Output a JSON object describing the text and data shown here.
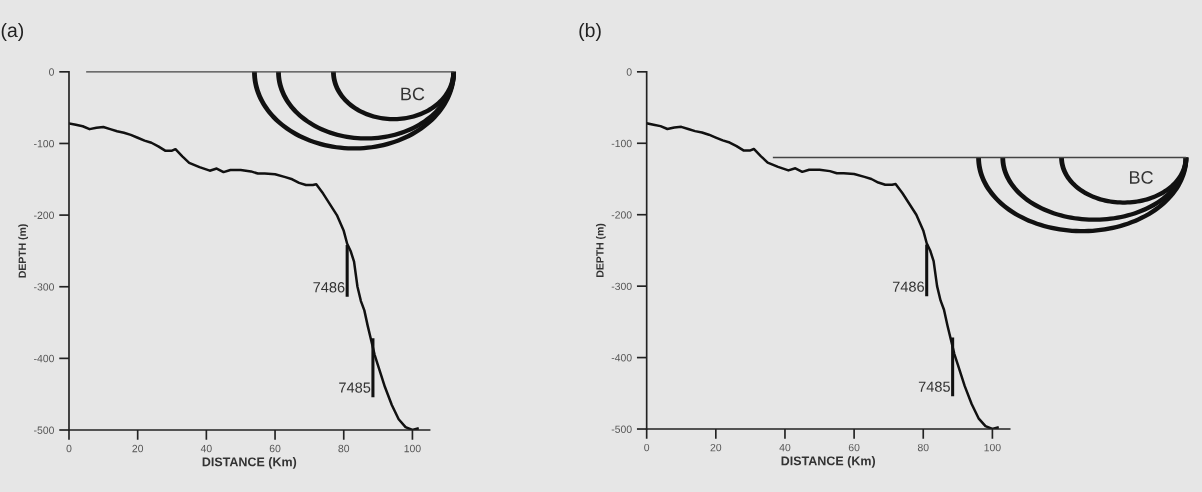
{
  "chart_data": [
    {
      "type": "line",
      "title": "(a)",
      "xlabel": "DISTANCE (Km)",
      "ylabel": "DEPTH (m)",
      "annotations": [
        "BC"
      ],
      "ref_lines": [
        {
          "axis": "y",
          "value": 0,
          "color": "#444444"
        }
      ],
      "xlim": [
        0,
        105
      ],
      "ylim": [
        -500,
        0
      ],
      "xticks": [
        0,
        20,
        40,
        60,
        80,
        100
      ],
      "yticks": [
        -500,
        -400,
        -300,
        -200,
        -100,
        0
      ],
      "grid": false,
      "legend": false,
      "marker": "none",
      "line_style": "solid",
      "series": [
        {
          "color": "#111111",
          "x": [
            0,
            2,
            4,
            6,
            8,
            10,
            12,
            14,
            16,
            18,
            20,
            22,
            24,
            26,
            28,
            30,
            31,
            33,
            35,
            38,
            41,
            43,
            45,
            47,
            50,
            53,
            55,
            57,
            60,
            63,
            65,
            67,
            69,
            71,
            72,
            74,
            76,
            78,
            80,
            81,
            82,
            83,
            84,
            85,
            86,
            87,
            88,
            89,
            90,
            92,
            94,
            96,
            98,
            100,
            101.5
          ],
          "values": [
            -72,
            -74,
            -76,
            -80,
            -78,
            -77,
            -80,
            -83,
            -85,
            -88,
            -92,
            -96,
            -99,
            -104,
            -110,
            -110,
            -108,
            -118,
            -127,
            -133,
            -138,
            -135,
            -140,
            -137,
            -137,
            -139,
            -142,
            -142,
            -143,
            -147,
            -150,
            -155,
            -158,
            -158,
            -157,
            -170,
            -185,
            -200,
            -222,
            -240,
            -250,
            -265,
            -300,
            -320,
            -333,
            -355,
            -375,
            -395,
            -410,
            -440,
            -465,
            -485,
            -496,
            -500,
            -498
          ]
        },
        {
          "name": "7486",
          "color": "#111111",
          "x": [
            81,
            81
          ],
          "values": [
            -244,
            -312
          ]
        },
        {
          "name": "7485",
          "color": "#111111",
          "x": [
            88.5,
            88.5
          ],
          "values": [
            -374,
            -452
          ]
        }
      ]
    },
    {
      "type": "line",
      "title": "(b)",
      "xlabel": "DISTANCE (Km)",
      "ylabel": "DEPTH (m)",
      "annotations": [
        "BC"
      ],
      "ref_lines": [
        {
          "axis": "y",
          "value": -120,
          "color": "#444444"
        }
      ],
      "xlim": [
        0,
        105
      ],
      "ylim": [
        -500,
        0
      ],
      "xticks": [
        0,
        20,
        40,
        60,
        80,
        100
      ],
      "yticks": [
        -500,
        -400,
        -300,
        -200,
        -100,
        0
      ],
      "grid": false,
      "legend": false,
      "marker": "none",
      "line_style": "solid",
      "series": [
        {
          "color": "#111111",
          "x": [
            0,
            2,
            4,
            6,
            8,
            10,
            12,
            14,
            16,
            18,
            20,
            22,
            24,
            26,
            28,
            30,
            31,
            33,
            35,
            38,
            41,
            43,
            45,
            47,
            50,
            53,
            55,
            57,
            60,
            63,
            65,
            67,
            69,
            71,
            72,
            74,
            76,
            78,
            80,
            81,
            82,
            83,
            84,
            85,
            86,
            87,
            88,
            89,
            90,
            92,
            94,
            96,
            98,
            100,
            101.5
          ],
          "values": [
            -72,
            -74,
            -76,
            -80,
            -78,
            -77,
            -80,
            -83,
            -85,
            -88,
            -92,
            -96,
            -99,
            -104,
            -110,
            -110,
            -108,
            -118,
            -127,
            -133,
            -138,
            -135,
            -140,
            -137,
            -137,
            -139,
            -142,
            -142,
            -143,
            -147,
            -150,
            -155,
            -158,
            -158,
            -157,
            -170,
            -185,
            -200,
            -222,
            -240,
            -250,
            -265,
            -300,
            -320,
            -333,
            -355,
            -375,
            -395,
            -410,
            -440,
            -465,
            -485,
            -496,
            -500,
            -498
          ]
        },
        {
          "name": "7486",
          "color": "#111111",
          "x": [
            81,
            81
          ],
          "values": [
            -244,
            -312
          ]
        },
        {
          "name": "7485",
          "color": "#111111",
          "x": [
            88.5,
            88.5
          ],
          "values": [
            -374,
            -452
          ]
        }
      ]
    }
  ]
}
